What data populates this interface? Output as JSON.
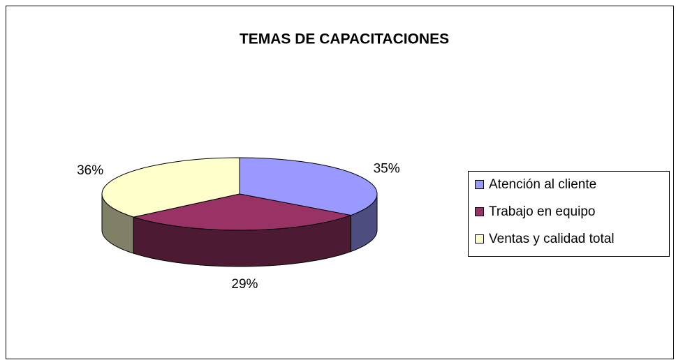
{
  "chart_data": {
    "type": "pie3d",
    "title": "TEMAS DE CAPACITACIONES",
    "categories": [
      "Atención al cliente",
      "Trabajo en equipo",
      "Ventas y calidad total"
    ],
    "values": [
      35,
      29,
      36
    ],
    "value_labels": [
      "35%",
      "29%",
      "36%"
    ],
    "colors": [
      "#9999ff",
      "#993366",
      "#ffffcc"
    ],
    "legend": "right"
  }
}
